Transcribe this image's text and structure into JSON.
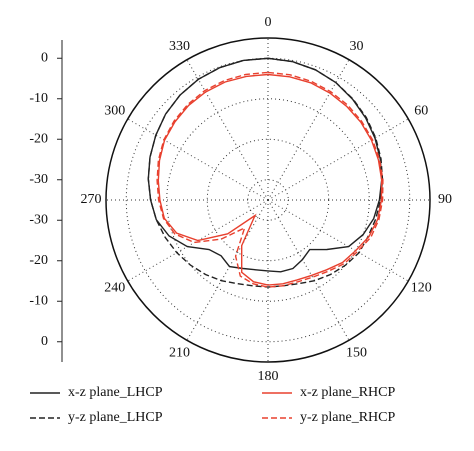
{
  "chart_data": {
    "type": "polar",
    "theta": [
      0,
      10,
      20,
      30,
      40,
      50,
      60,
      70,
      80,
      90,
      100,
      110,
      120,
      130,
      140,
      150,
      160,
      170,
      180,
      190,
      200,
      210,
      220,
      230,
      240,
      250,
      260,
      270,
      280,
      290,
      300,
      310,
      320,
      330,
      340,
      350
    ],
    "rlim": [
      -35,
      5
    ],
    "rticks": [
      0,
      -10,
      -20,
      -30
    ],
    "thetaticks": [
      0,
      30,
      60,
      90,
      120,
      150,
      180,
      210,
      240,
      270,
      300,
      330
    ],
    "grid": true,
    "series": [
      {
        "name": "x-z plane_LHCP",
        "color": "#222222",
        "dash": false,
        "values": [
          0,
          -0.3,
          -0.8,
          -1.5,
          -2.5,
          -3.5,
          -4.5,
          -5.5,
          -6.5,
          -7.5,
          -8.5,
          -10,
          -12,
          -16,
          -19,
          -18,
          -17,
          -17,
          -17.5,
          -17.5,
          -17,
          -16,
          -17,
          -16,
          -12,
          -9,
          -7,
          -6,
          -5,
          -4,
          -3,
          -2,
          -1.2,
          -0.6,
          -0.2,
          0
        ]
      },
      {
        "name": "y-z plane_LHCP",
        "color": "#222222",
        "dash": true,
        "values": [
          0,
          -0.3,
          -0.8,
          -1.5,
          -2.4,
          -3.3,
          -4.3,
          -5.3,
          -6.3,
          -7.2,
          -8,
          -8.7,
          -9,
          -10,
          -11,
          -12,
          -13,
          -13.5,
          -13.5,
          -13.5,
          -13,
          -12,
          -11,
          -10,
          -9,
          -8,
          -7,
          -6,
          -5,
          -4,
          -3,
          -2,
          -1.2,
          -0.6,
          -0.2,
          0
        ]
      },
      {
        "name": "x-z plane_RHCP",
        "color": "#e8402e",
        "dash": false,
        "values": [
          -4,
          -4.1,
          -4.2,
          -4.5,
          -4.8,
          -5.1,
          -5.5,
          -6,
          -6.5,
          -7,
          -7.5,
          -8.5,
          -10,
          -11,
          -12.5,
          -13.5,
          -14,
          -14,
          -14,
          -14.5,
          -16,
          -22,
          -30,
          -22,
          -15,
          -11,
          -9,
          -8.3,
          -7.5,
          -6.5,
          -5.5,
          -5,
          -4.5,
          -4.2,
          -4,
          -4
        ]
      },
      {
        "name": "y-z plane_RHCP",
        "color": "#e8402e",
        "dash": true,
        "values": [
          -3.5,
          -3.6,
          -3.8,
          -4.1,
          -4.4,
          -4.8,
          -5.2,
          -5.7,
          -6.2,
          -6.7,
          -7.2,
          -8,
          -9.5,
          -10.5,
          -12,
          -13,
          -13.5,
          -13.5,
          -13.5,
          -14,
          -15,
          -19,
          -26,
          -20,
          -14,
          -10.5,
          -8.8,
          -8,
          -7.2,
          -6.2,
          -5.3,
          -4.7,
          -4.2,
          -3.8,
          -3.6,
          -3.5
        ]
      }
    ]
  }
}
